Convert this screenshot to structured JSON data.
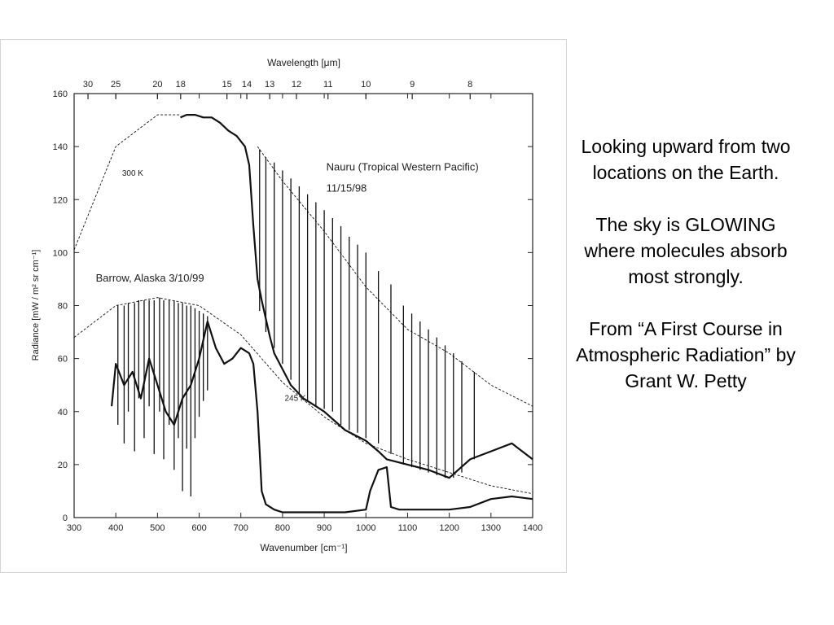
{
  "caption": {
    "p1": "Looking upward from two locations on the Earth.",
    "p2": "The sky is GLOWING where molecules absorb most strongly.",
    "p3": "From “A First Course in Atmospheric Radiation” by Grant W. Petty"
  },
  "chart_data": {
    "type": "line",
    "title": "",
    "xlabel": "Wavenumber [cm⁻¹]",
    "ylabel": "Radiance [mW / m² sr cm⁻¹]",
    "top_xlabel": "Wavelength [μm]",
    "xlim": [
      300,
      1400
    ],
    "ylim": [
      0,
      160
    ],
    "xticks": [
      300,
      400,
      500,
      600,
      700,
      800,
      900,
      1000,
      1100,
      1200,
      1300,
      1400
    ],
    "yticks": [
      0,
      20,
      40,
      60,
      80,
      100,
      120,
      140,
      160
    ],
    "top_ticks": [
      30,
      25,
      20,
      18,
      15,
      14,
      13,
      12,
      11,
      10,
      9,
      8
    ],
    "grid": false,
    "legend": "none",
    "annotations": [
      {
        "text": "Nauru (Tropical Western Pacific)",
        "x": 905,
        "y": 131
      },
      {
        "text": "11/15/98",
        "x": 905,
        "y": 123
      },
      {
        "text": "Barrow, Alaska 3/10/99",
        "x": 352,
        "y": 89
      },
      {
        "text": "300 K",
        "x": 415,
        "y": 129
      },
      {
        "text": "245 K",
        "x": 805,
        "y": 44
      }
    ],
    "series": [
      {
        "name": "Nauru (Tropical Western Pacific) 11/15/98",
        "style": "solid",
        "x": [
          555,
          570,
          590,
          610,
          630,
          650,
          670,
          690,
          700,
          710,
          720,
          730,
          740,
          750,
          760,
          770,
          780,
          800,
          820,
          850,
          880,
          900,
          950,
          1000,
          1030,
          1050,
          1100,
          1150,
          1200,
          1250,
          1300,
          1350,
          1400
        ],
        "y": [
          151,
          152,
          152,
          151,
          151,
          149,
          146,
          144,
          142,
          140,
          133,
          110,
          90,
          82,
          75,
          68,
          62,
          56,
          50,
          45,
          42,
          40,
          33,
          29,
          25,
          22,
          20,
          18,
          15,
          22,
          25,
          28,
          22
        ]
      },
      {
        "name": "Barrow, Alaska 3/10/99",
        "style": "solid",
        "x": [
          390,
          400,
          420,
          440,
          460,
          480,
          500,
          520,
          540,
          560,
          580,
          600,
          620,
          640,
          660,
          680,
          700,
          720,
          730,
          740,
          745,
          750,
          760,
          780,
          800,
          850,
          900,
          950,
          1000,
          1010,
          1030,
          1050,
          1060,
          1080,
          1100,
          1150,
          1200,
          1250,
          1300,
          1350,
          1400
        ],
        "y": [
          42,
          58,
          50,
          55,
          45,
          60,
          50,
          40,
          35,
          45,
          50,
          60,
          74,
          64,
          58,
          60,
          64,
          62,
          58,
          40,
          25,
          10,
          5,
          3,
          2,
          2,
          2,
          2,
          3,
          10,
          18,
          19,
          4,
          3,
          3,
          3,
          3,
          4,
          7,
          8,
          7
        ]
      },
      {
        "name": "300 K",
        "style": "dashed",
        "x": [
          300,
          400,
          500,
          556
        ],
        "y": [
          101,
          140,
          152,
          152
        ]
      },
      {
        "name": "300 K",
        "style": "dashed",
        "x": [
          740,
          800,
          900,
          1000,
          1100,
          1200,
          1300,
          1400
        ],
        "y": [
          140,
          127,
          108,
          87,
          71,
          62,
          50,
          42
        ]
      },
      {
        "name": "245 K",
        "style": "dashed",
        "x": [
          300,
          400,
          500,
          600,
          700,
          800,
          900,
          1000,
          1100,
          1200,
          1300,
          1400
        ],
        "y": [
          68,
          80,
          83,
          80,
          69,
          51,
          38,
          28,
          22,
          17,
          12,
          9
        ]
      }
    ],
    "absorption_lines": [
      {
        "series": "Barrow, Alaska 3/10/99",
        "x": [
          405,
          420,
          430,
          445,
          455,
          468,
          480,
          492,
          505,
          515,
          528,
          540,
          550,
          560,
          570,
          580,
          590,
          600,
          610,
          620
        ],
        "y_top": [
          80,
          80,
          81,
          81,
          82,
          82,
          82,
          82,
          83,
          82,
          82,
          82,
          81,
          81,
          80,
          80,
          79,
          78,
          77,
          76
        ],
        "y_bottom": [
          35,
          28,
          40,
          25,
          45,
          30,
          42,
          24,
          40,
          22,
          35,
          18,
          30,
          10,
          26,
          8,
          30,
          38,
          44,
          48
        ]
      },
      {
        "series": "Nauru (Tropical Western Pacific) 11/15/98",
        "x": [
          745,
          760,
          780,
          800,
          820,
          840,
          860,
          880,
          900,
          920,
          940,
          960,
          980,
          1000,
          1030,
          1060,
          1090,
          1110,
          1130,
          1150,
          1170,
          1190,
          1210,
          1230,
          1260
        ],
        "y_top": [
          139,
          136,
          134,
          131,
          128,
          125,
          122,
          119,
          116,
          113,
          110,
          106,
          103,
          100,
          93,
          88,
          80,
          77,
          74,
          71,
          68,
          65,
          62,
          59,
          55
        ],
        "y_bottom": [
          78,
          70,
          64,
          58,
          52,
          47,
          44,
          42,
          41,
          40,
          35,
          33,
          32,
          30,
          28,
          24,
          20,
          19,
          18,
          17,
          16,
          15,
          15,
          17,
          22
        ]
      }
    ]
  }
}
